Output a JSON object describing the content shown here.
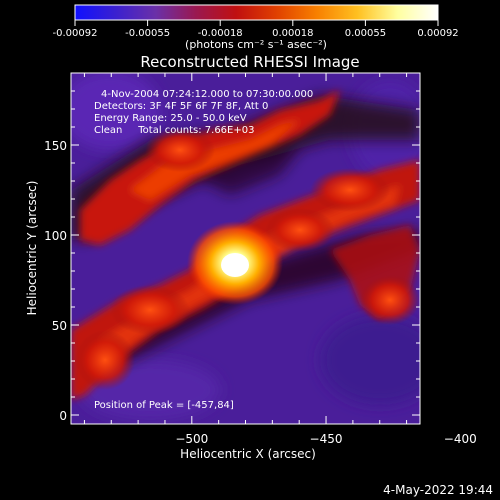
{
  "colorbar": {
    "tick_labels": [
      "-0.00092",
      "-0.00055",
      "-0.00018",
      "0.00018",
      "0.00055",
      "0.00092"
    ],
    "units_label": "(photons cm⁻² s⁻¹ asec⁻²)",
    "stops": [
      "#1010ff",
      "#3a20d0",
      "#6a30a8",
      "#9a1850",
      "#c01010",
      "#e04000",
      "#f88000",
      "#ffc020",
      "#ffffa0",
      "#ffffff"
    ]
  },
  "title": "Reconstructed RHESSI Image",
  "info_lines": [
    "4-Nov-2004 07:24:12.000 to 07:30:00.000",
    "Detectors: 3F 4F 5F 6F 7F 8F, Att 0",
    "Energy Range: 25.0 - 50.0 keV",
    "Clean     Total counts: 7.66E+03"
  ],
  "peak_label": "Position of Peak = [-457,84]",
  "x_axis": {
    "label": "Heliocentric X (arcsec)",
    "ticks": [
      "-500",
      "-450",
      "-400"
    ],
    "range": [
      -545,
      -415
    ]
  },
  "y_axis": {
    "label": "Heliocentric Y (arcsec)",
    "ticks": [
      "0",
      "50",
      "100",
      "150"
    ],
    "range": [
      -5,
      190
    ]
  },
  "footer_timestamp": "4-May-2022 19:44"
}
